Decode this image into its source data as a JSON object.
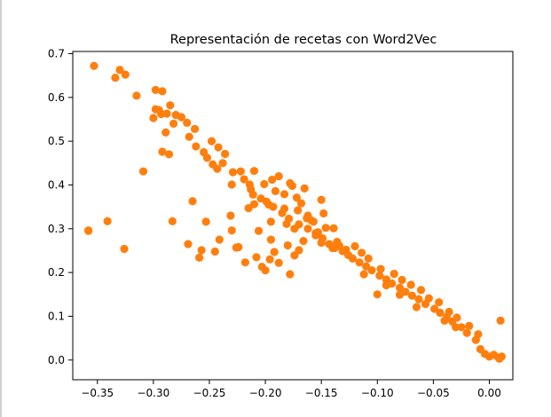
{
  "chart_data": {
    "type": "scatter",
    "title": "Representación de recetas con Word2Vec",
    "xlabel": "",
    "ylabel": "",
    "xlim": [
      -0.372,
      0.021
    ],
    "ylim": [
      -0.045,
      0.705
    ],
    "xticks": [
      -0.35,
      -0.3,
      -0.25,
      -0.2,
      -0.15,
      -0.1,
      -0.05,
      0.0
    ],
    "xtick_labels": [
      "−0.35",
      "−0.30",
      "−0.25",
      "−0.20",
      "−0.15",
      "−0.10",
      "−0.05",
      "0.00"
    ],
    "yticks": [
      0.0,
      0.1,
      0.2,
      0.3,
      0.4,
      0.5,
      0.6,
      0.7
    ],
    "ytick_labels": [
      "0.0",
      "0.1",
      "0.2",
      "0.3",
      "0.4",
      "0.5",
      "0.6",
      "0.7"
    ],
    "grid": false,
    "marker_color": "#ff7f0e",
    "series": [
      {
        "x": [
          -0.353,
          -0.33,
          -0.334,
          -0.315,
          -0.325,
          -0.298,
          -0.292,
          -0.293,
          -0.3,
          -0.295,
          -0.298,
          -0.285,
          -0.288,
          -0.28,
          -0.282,
          -0.289,
          -0.275,
          -0.27,
          -0.263,
          -0.268,
          -0.262,
          -0.248,
          -0.242,
          -0.252,
          -0.247,
          -0.255,
          -0.236,
          -0.238,
          -0.229,
          -0.219,
          -0.23,
          -0.214,
          -0.213,
          -0.211,
          -0.204,
          -0.199,
          -0.193,
          -0.185,
          -0.179,
          -0.17,
          -0.162,
          -0.155,
          -0.149,
          -0.143,
          -0.138,
          -0.131,
          -0.126,
          -0.122,
          -0.116,
          -0.11,
          -0.105,
          -0.098,
          -0.092,
          -0.087,
          -0.08,
          -0.075,
          -0.069,
          -0.063,
          -0.057,
          -0.049,
          -0.044,
          -0.038,
          -0.033,
          -0.025,
          -0.02,
          -0.012,
          -0.008,
          -0.004,
          0.0,
          0.004,
          0.008,
          0.011,
          0.01,
          0.009,
          -0.201,
          -0.183,
          -0.197,
          -0.162,
          -0.157,
          -0.146,
          -0.171,
          -0.153,
          -0.12,
          -0.139,
          -0.188,
          -0.178,
          -0.165,
          -0.21,
          -0.194,
          -0.176,
          -0.15,
          -0.181,
          -0.155,
          -0.136,
          -0.215,
          -0.168,
          -0.183,
          -0.191,
          -0.172,
          -0.148,
          -0.163,
          -0.159,
          -0.134,
          -0.128,
          -0.114,
          -0.108,
          -0.097,
          -0.085,
          -0.078,
          -0.07,
          -0.061,
          -0.054,
          -0.045,
          -0.036,
          -0.029,
          -0.018,
          -0.01,
          -0.358,
          -0.358,
          -0.341,
          -0.326,
          -0.309,
          -0.292,
          -0.286,
          -0.283,
          -0.269,
          -0.257,
          -0.226,
          -0.241,
          -0.224,
          -0.23,
          -0.208,
          -0.218,
          -0.2,
          -0.192,
          -0.195,
          -0.18,
          -0.17,
          -0.174,
          -0.196,
          -0.188,
          -0.203,
          -0.178,
          -0.259,
          -0.245,
          -0.231,
          -0.253,
          -0.206,
          -0.21,
          -0.195,
          -0.174,
          -0.15,
          -0.166,
          -0.14,
          -0.112,
          -0.092,
          -0.1,
          -0.08,
          -0.065,
          -0.04,
          -0.03,
          -0.265,
          -0.243,
          -0.222
        ],
        "y": [
          0.672,
          0.663,
          0.645,
          0.604,
          0.652,
          0.617,
          0.614,
          0.562,
          0.553,
          0.571,
          0.573,
          0.582,
          0.563,
          0.56,
          0.54,
          0.52,
          0.555,
          0.542,
          0.528,
          0.51,
          0.488,
          0.5,
          0.486,
          0.462,
          0.447,
          0.475,
          0.471,
          0.45,
          0.429,
          0.413,
          0.401,
          0.401,
          0.39,
          0.378,
          0.369,
          0.362,
          0.35,
          0.336,
          0.323,
          0.31,
          0.3,
          0.29,
          0.278,
          0.265,
          0.256,
          0.249,
          0.24,
          0.232,
          0.223,
          0.214,
          0.205,
          0.193,
          0.184,
          0.175,
          0.165,
          0.156,
          0.147,
          0.139,
          0.128,
          0.117,
          0.108,
          0.098,
          0.088,
          0.075,
          0.062,
          0.046,
          0.025,
          0.014,
          0.008,
          0.012,
          0.006,
          0.008,
          0.09,
          0.003,
          0.402,
          0.379,
          0.355,
          0.33,
          0.316,
          0.302,
          0.342,
          0.292,
          0.26,
          0.301,
          0.42,
          0.404,
          0.392,
          0.432,
          0.412,
          0.398,
          0.366,
          0.311,
          0.285,
          0.27,
          0.347,
          0.358,
          0.346,
          0.386,
          0.371,
          0.335,
          0.324,
          0.319,
          0.261,
          0.252,
          0.245,
          0.232,
          0.208,
          0.197,
          0.183,
          0.172,
          0.16,
          0.141,
          0.132,
          0.11,
          0.097,
          0.078,
          0.059,
          0.296,
          0.295,
          0.317,
          0.254,
          0.431,
          0.476,
          0.47,
          0.317,
          0.265,
          0.251,
          0.257,
          0.275,
          0.258,
          0.296,
          0.235,
          0.223,
          0.205,
          0.247,
          0.275,
          0.262,
          0.251,
          0.239,
          0.23,
          0.222,
          0.213,
          0.196,
          0.234,
          0.248,
          0.33,
          0.316,
          0.295,
          0.356,
          0.316,
          0.3,
          0.268,
          0.272,
          0.256,
          0.196,
          0.171,
          0.15,
          0.149,
          0.121,
          0.09,
          0.075,
          0.363,
          0.437,
          0.431
        ]
      }
    ]
  }
}
